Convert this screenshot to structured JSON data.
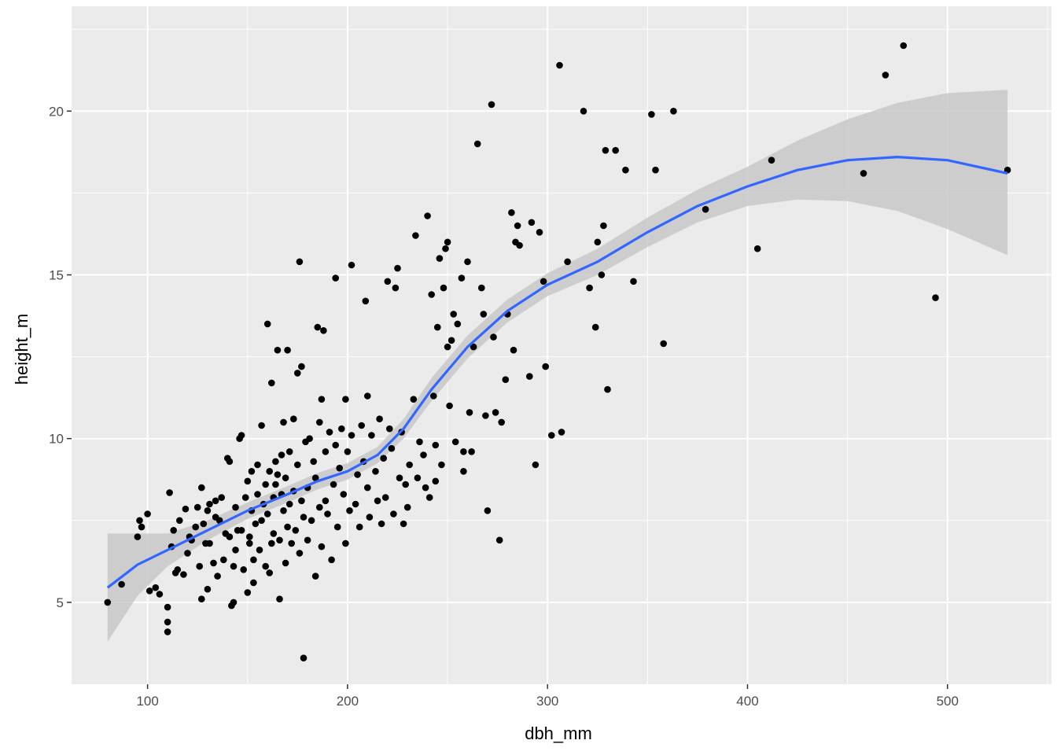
{
  "chart_data": {
    "type": "scatter",
    "title": "",
    "xlabel": "dbh_mm",
    "ylabel": "height_m",
    "xlim": [
      62,
      552
    ],
    "ylim": [
      2.5,
      23.2
    ],
    "x_ticks": [
      100,
      200,
      300,
      400,
      500
    ],
    "y_ticks": [
      5,
      10,
      15,
      20
    ],
    "grid": true,
    "legend": "none",
    "colors": {
      "panel_bg": "#EBEBEB",
      "grid": "#FFFFFF",
      "points": "#000000",
      "smooth_line": "#3366FF",
      "ribbon": "#C8C8C8"
    },
    "points": [
      [
        80,
        5.0
      ],
      [
        87,
        5.55
      ],
      [
        95,
        7.0
      ],
      [
        96,
        7.5
      ],
      [
        97,
        7.3
      ],
      [
        100,
        7.7
      ],
      [
        101,
        5.35
      ],
      [
        104,
        5.45
      ],
      [
        106,
        5.25
      ],
      [
        110,
        4.1
      ],
      [
        110,
        4.4
      ],
      [
        110,
        4.85
      ],
      [
        111,
        8.35
      ],
      [
        112,
        6.7
      ],
      [
        113,
        7.2
      ],
      [
        114,
        5.9
      ],
      [
        115,
        6.0
      ],
      [
        116,
        7.5
      ],
      [
        118,
        5.85
      ],
      [
        119,
        7.85
      ],
      [
        120,
        6.5
      ],
      [
        121,
        7.0
      ],
      [
        122,
        6.9
      ],
      [
        124,
        7.3
      ],
      [
        125,
        7.9
      ],
      [
        126,
        6.1
      ],
      [
        127,
        5.1
      ],
      [
        127,
        8.5
      ],
      [
        128,
        7.4
      ],
      [
        129,
        6.8
      ],
      [
        130,
        5.4
      ],
      [
        130,
        7.8
      ],
      [
        131,
        8.0
      ],
      [
        131,
        6.8
      ],
      [
        133,
        6.2
      ],
      [
        134,
        7.6
      ],
      [
        134,
        8.1
      ],
      [
        135,
        5.8
      ],
      [
        136,
        7.5
      ],
      [
        137,
        8.2
      ],
      [
        138,
        6.3
      ],
      [
        139,
        7.1
      ],
      [
        140,
        9.4
      ],
      [
        141,
        9.3
      ],
      [
        141,
        7.0
      ],
      [
        142,
        4.9
      ],
      [
        143,
        5.0
      ],
      [
        143,
        6.1
      ],
      [
        144,
        6.6
      ],
      [
        144,
        7.9
      ],
      [
        145,
        7.2
      ],
      [
        146,
        10.0
      ],
      [
        147,
        10.1
      ],
      [
        147,
        7.2
      ],
      [
        148,
        6.0
      ],
      [
        149,
        8.2
      ],
      [
        150,
        5.3
      ],
      [
        150,
        8.7
      ],
      [
        151,
        6.8
      ],
      [
        151,
        7.0
      ],
      [
        152,
        9.0
      ],
      [
        152,
        7.8
      ],
      [
        153,
        5.6
      ],
      [
        153,
        6.3
      ],
      [
        154,
        7.4
      ],
      [
        155,
        8.3
      ],
      [
        155,
        9.2
      ],
      [
        156,
        6.6
      ],
      [
        157,
        10.4
      ],
      [
        157,
        7.5
      ],
      [
        158,
        8.0
      ],
      [
        159,
        8.6
      ],
      [
        159,
        6.1
      ],
      [
        160,
        13.5
      ],
      [
        160,
        7.7
      ],
      [
        161,
        9.0
      ],
      [
        161,
        5.9
      ],
      [
        162,
        11.7
      ],
      [
        162,
        6.8
      ],
      [
        163,
        8.2
      ],
      [
        163,
        7.1
      ],
      [
        164,
        8.6
      ],
      [
        164,
        9.3
      ],
      [
        165,
        12.7
      ],
      [
        165,
        8.9
      ],
      [
        166,
        5.1
      ],
      [
        166,
        6.9
      ],
      [
        167,
        8.3
      ],
      [
        167,
        9.5
      ],
      [
        168,
        7.8
      ],
      [
        168,
        10.5
      ],
      [
        169,
        6.2
      ],
      [
        169,
        8.8
      ],
      [
        170,
        12.7
      ],
      [
        170,
        7.3
      ],
      [
        171,
        8.0
      ],
      [
        171,
        9.6
      ],
      [
        172,
        6.8
      ],
      [
        173,
        10.6
      ],
      [
        173,
        8.4
      ],
      [
        174,
        7.2
      ],
      [
        175,
        12.0
      ],
      [
        175,
        9.2
      ],
      [
        176,
        15.4
      ],
      [
        176,
        6.5
      ],
      [
        177,
        12.2
      ],
      [
        177,
        8.1
      ],
      [
        178,
        3.3
      ],
      [
        178,
        7.6
      ],
      [
        179,
        9.9
      ],
      [
        180,
        6.9
      ],
      [
        180,
        8.5
      ],
      [
        181,
        10.0
      ],
      [
        182,
        7.5
      ],
      [
        183,
        9.3
      ],
      [
        184,
        5.8
      ],
      [
        184,
        8.8
      ],
      [
        185,
        13.4
      ],
      [
        186,
        7.9
      ],
      [
        186,
        10.5
      ],
      [
        187,
        11.2
      ],
      [
        187,
        6.7
      ],
      [
        188,
        13.3
      ],
      [
        189,
        8.1
      ],
      [
        189,
        9.6
      ],
      [
        190,
        7.7
      ],
      [
        191,
        10.2
      ],
      [
        192,
        6.3
      ],
      [
        193,
        8.6
      ],
      [
        194,
        14.9
      ],
      [
        194,
        9.8
      ],
      [
        195,
        7.3
      ],
      [
        196,
        9.1
      ],
      [
        197,
        10.3
      ],
      [
        198,
        8.3
      ],
      [
        199,
        6.8
      ],
      [
        199,
        11.2
      ],
      [
        200,
        9.6
      ],
      [
        201,
        7.8
      ],
      [
        202,
        15.3
      ],
      [
        202,
        10.1
      ],
      [
        204,
        8.0
      ],
      [
        205,
        8.9
      ],
      [
        206,
        7.3
      ],
      [
        207,
        10.4
      ],
      [
        208,
        9.3
      ],
      [
        209,
        14.2
      ],
      [
        210,
        11.3
      ],
      [
        210,
        8.5
      ],
      [
        211,
        7.6
      ],
      [
        212,
        10.1
      ],
      [
        214,
        9.0
      ],
      [
        215,
        8.1
      ],
      [
        216,
        10.6
      ],
      [
        217,
        7.4
      ],
      [
        218,
        9.4
      ],
      [
        219,
        8.2
      ],
      [
        220,
        14.8
      ],
      [
        221,
        10.3
      ],
      [
        222,
        9.7
      ],
      [
        223,
        7.7
      ],
      [
        224,
        14.6
      ],
      [
        225,
        15.2
      ],
      [
        226,
        8.8
      ],
      [
        227,
        10.2
      ],
      [
        228,
        7.4
      ],
      [
        229,
        8.6
      ],
      [
        230,
        7.9
      ],
      [
        231,
        9.2
      ],
      [
        233,
        11.2
      ],
      [
        234,
        16.2
      ],
      [
        235,
        8.8
      ],
      [
        236,
        9.9
      ],
      [
        238,
        9.5
      ],
      [
        239,
        8.5
      ],
      [
        240,
        16.8
      ],
      [
        241,
        8.2
      ],
      [
        242,
        14.4
      ],
      [
        243,
        11.3
      ],
      [
        244,
        9.8
      ],
      [
        244,
        8.7
      ],
      [
        245,
        13.4
      ],
      [
        246,
        15.5
      ],
      [
        247,
        9.2
      ],
      [
        248,
        14.6
      ],
      [
        249,
        15.8
      ],
      [
        250,
        16.0
      ],
      [
        250,
        12.8
      ],
      [
        251,
        11.0
      ],
      [
        252,
        13.0
      ],
      [
        253,
        13.8
      ],
      [
        254,
        9.9
      ],
      [
        255,
        13.5
      ],
      [
        257,
        14.9
      ],
      [
        258,
        9.6
      ],
      [
        258,
        9.0
      ],
      [
        260,
        15.4
      ],
      [
        261,
        10.8
      ],
      [
        262,
        9.6
      ],
      [
        263,
        12.8
      ],
      [
        265,
        19.0
      ],
      [
        267,
        14.6
      ],
      [
        268,
        13.8
      ],
      [
        269,
        10.7
      ],
      [
        270,
        7.8
      ],
      [
        272,
        20.2
      ],
      [
        273,
        13.1
      ],
      [
        274,
        10.8
      ],
      [
        276,
        6.9
      ],
      [
        277,
        10.5
      ],
      [
        279,
        11.8
      ],
      [
        280,
        13.8
      ],
      [
        282,
        16.9
      ],
      [
        283,
        12.7
      ],
      [
        284,
        16.0
      ],
      [
        285,
        16.5
      ],
      [
        286,
        15.9
      ],
      [
        291,
        11.9
      ],
      [
        292,
        16.6
      ],
      [
        294,
        9.2
      ],
      [
        296,
        16.3
      ],
      [
        298,
        14.8
      ],
      [
        299,
        12.2
      ],
      [
        302,
        10.1
      ],
      [
        306,
        21.4
      ],
      [
        307,
        10.2
      ],
      [
        310,
        15.4
      ],
      [
        318,
        20.0
      ],
      [
        321,
        14.6
      ],
      [
        324,
        13.4
      ],
      [
        325,
        16.0
      ],
      [
        327,
        15.0
      ],
      [
        328,
        16.5
      ],
      [
        329,
        18.8
      ],
      [
        330,
        11.5
      ],
      [
        334,
        18.8
      ],
      [
        339,
        18.2
      ],
      [
        343,
        14.8
      ],
      [
        352,
        19.9
      ],
      [
        354,
        18.2
      ],
      [
        358,
        12.9
      ],
      [
        363,
        20.0
      ],
      [
        379,
        17.0
      ],
      [
        405,
        15.8
      ],
      [
        412,
        18.5
      ],
      [
        458,
        18.1
      ],
      [
        469,
        21.1
      ],
      [
        478,
        22.0
      ],
      [
        494,
        14.3
      ],
      [
        530,
        18.2
      ]
    ],
    "smooth": {
      "x": [
        80,
        95,
        110,
        130,
        150,
        170,
        185,
        200,
        215,
        228,
        242,
        260,
        280,
        300,
        325,
        350,
        375,
        400,
        425,
        450,
        475,
        500,
        530
      ],
      "y": [
        5.45,
        6.15,
        6.6,
        7.2,
        7.8,
        8.3,
        8.7,
        9.0,
        9.5,
        10.3,
        11.5,
        12.8,
        13.9,
        14.7,
        15.4,
        16.3,
        17.1,
        17.7,
        18.2,
        18.5,
        18.6,
        18.5,
        18.1
      ],
      "lower": [
        3.8,
        5.2,
        6.1,
        6.9,
        7.55,
        8.05,
        8.45,
        8.75,
        9.25,
        10.0,
        11.15,
        12.45,
        13.55,
        14.35,
        15.0,
        15.85,
        16.6,
        17.1,
        17.3,
        17.25,
        16.95,
        16.4,
        15.6
      ],
      "upper": [
        7.1,
        7.1,
        7.1,
        7.5,
        8.05,
        8.55,
        8.95,
        9.25,
        9.75,
        10.6,
        11.85,
        13.15,
        14.25,
        15.05,
        15.8,
        16.75,
        17.6,
        18.3,
        19.1,
        19.75,
        20.25,
        20.55,
        20.65
      ]
    }
  }
}
